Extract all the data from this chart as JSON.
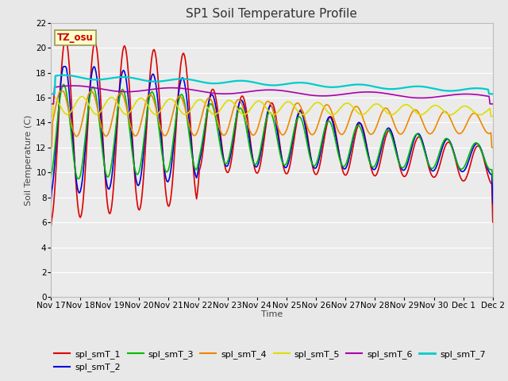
{
  "title": "SP1 Soil Temperature Profile",
  "xlabel": "Time",
  "ylabel": "Soil Temperature (C)",
  "tz_label": "TZ_osu",
  "ylim": [
    0,
    22
  ],
  "yticks": [
    0,
    2,
    4,
    6,
    8,
    10,
    12,
    14,
    16,
    18,
    20,
    22
  ],
  "xtick_labels": [
    "Nov 17",
    "Nov 18",
    "Nov 19",
    "Nov 20",
    "Nov 21",
    "Nov 22",
    "Nov 23",
    "Nov 24",
    "Nov 25",
    "Nov 26",
    "Nov 27",
    "Nov 28",
    "Nov 29",
    "Nov 30",
    "Dec 1",
    "Dec 2"
  ],
  "series_colors": {
    "spl_smT_1": "#dd0000",
    "spl_smT_2": "#0000dd",
    "spl_smT_3": "#00bb00",
    "spl_smT_4": "#ee8800",
    "spl_smT_5": "#dddd00",
    "spl_smT_6": "#aa00aa",
    "spl_smT_7": "#00cccc"
  },
  "background_color": "#e8e8e8",
  "plot_bg_color": "#ebebeb",
  "grid_color": "#ffffff",
  "title_fontsize": 11,
  "axis_label_fontsize": 8,
  "tick_fontsize": 7.5,
  "legend_fontsize": 8
}
